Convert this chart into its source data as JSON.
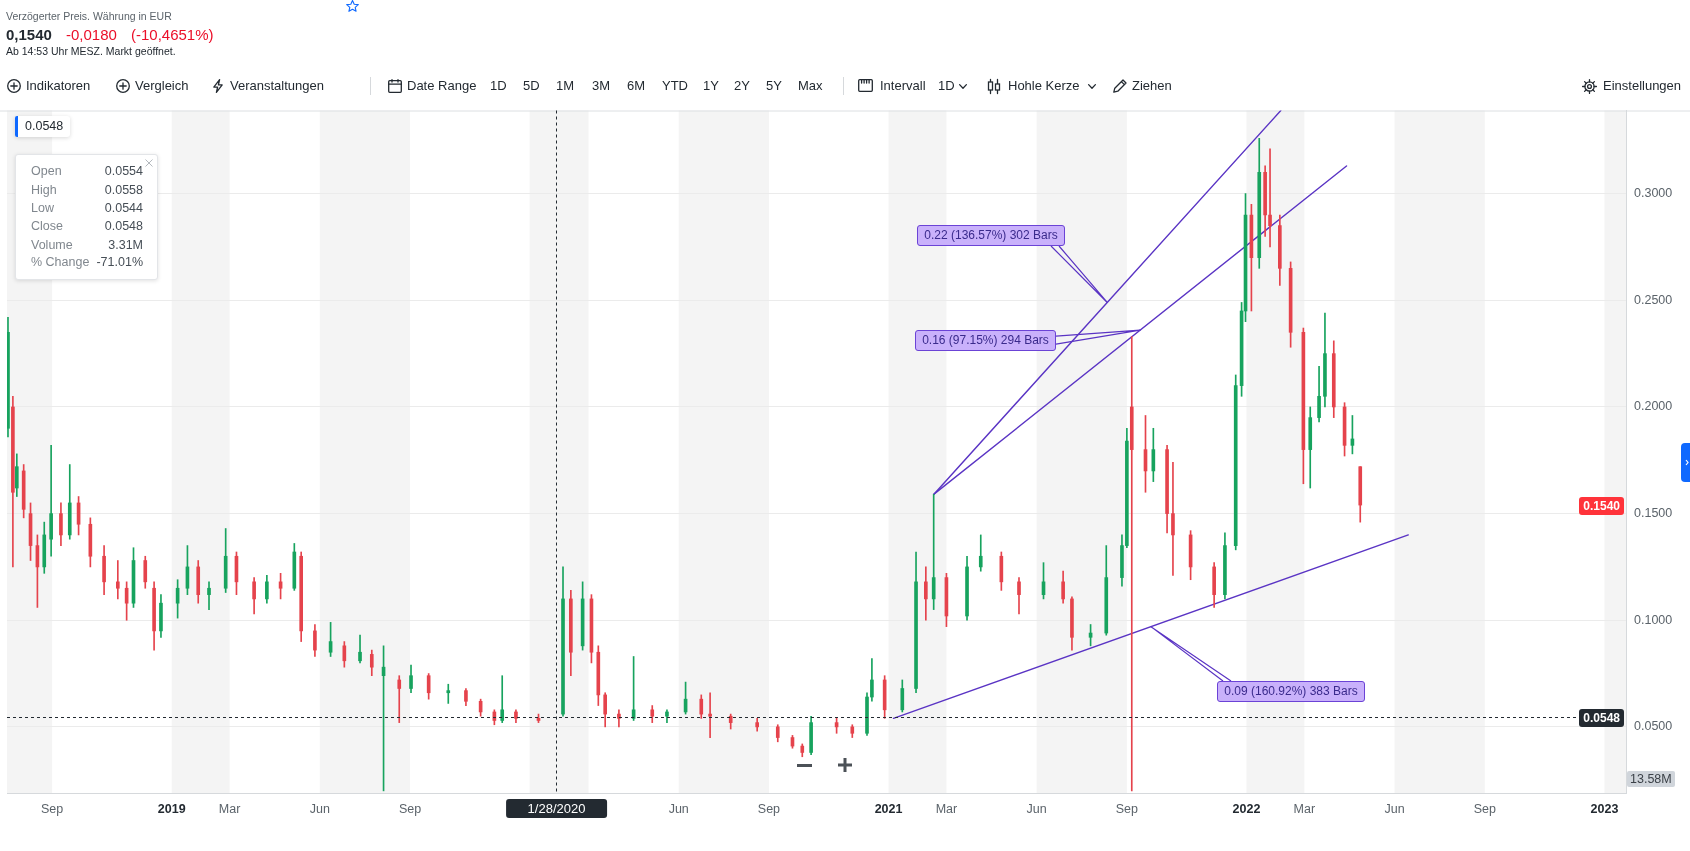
{
  "chart_data": {
    "type": "candlestick",
    "subtitle": "Verzögerter Preis. Währung in EUR",
    "x": [
      "2018-07-18",
      "2018-07-23",
      "2018-07-27",
      "2018-08-03",
      "2018-08-10",
      "2018-08-17",
      "2018-08-24",
      "2018-08-31",
      "2018-09-10",
      "2018-09-19",
      "2018-09-28",
      "2018-10-10",
      "2018-10-24",
      "2018-11-07",
      "2018-11-16",
      "2018-11-23",
      "2018-12-05",
      "2018-12-14",
      "2018-12-21",
      "2019-01-07",
      "2019-01-17",
      "2019-01-28",
      "2019-02-08",
      "2019-02-25",
      "2019-03-08",
      "2019-03-26",
      "2019-04-08",
      "2019-04-22",
      "2019-05-06",
      "2019-05-13",
      "2019-05-27",
      "2019-06-12",
      "2019-06-26",
      "2019-07-12",
      "2019-07-24",
      "2019-08-05",
      "2019-08-21",
      "2019-09-02",
      "2019-09-20",
      "2019-10-10",
      "2019-10-28",
      "2019-11-12",
      "2019-11-26",
      "2019-12-04",
      "2019-12-18",
      "2020-01-10",
      "2020-02-04",
      "2020-02-12",
      "2020-02-24",
      "2020-03-04",
      "2020-03-11",
      "2020-03-18",
      "2020-04-01",
      "2020-04-16",
      "2020-05-05",
      "2020-05-20",
      "2020-06-08",
      "2020-06-24",
      "2020-07-03",
      "2020-07-24",
      "2020-08-20",
      "2020-09-10",
      "2020-09-25",
      "2020-10-05",
      "2020-10-14",
      "2020-11-09",
      "2020-11-25",
      "2020-12-10",
      "2020-12-15",
      "2020-12-28",
      "2021-01-15",
      "2021-01-29",
      "2021-02-08",
      "2021-02-16",
      "2021-03-01",
      "2021-03-22",
      "2021-04-05",
      "2021-04-26",
      "2021-05-14",
      "2021-06-08",
      "2021-06-28",
      "2021-07-07",
      "2021-07-26",
      "2021-08-11",
      "2021-08-27",
      "2021-09-01",
      "2021-09-06",
      "2021-09-20",
      "2021-09-28",
      "2021-10-12",
      "2021-10-18",
      "2021-11-05",
      "2021-11-29",
      "2021-12-10",
      "2021-12-21",
      "2021-12-27",
      "2021-12-31",
      "2022-01-06",
      "2022-01-14",
      "2022-01-20",
      "2022-01-25",
      "2022-02-04",
      "2022-02-15",
      "2022-02-28",
      "2022-03-07",
      "2022-03-16",
      "2022-03-22",
      "2022-03-31",
      "2022-04-11",
      "2022-04-19",
      "2022-04-27"
    ],
    "ohlc": [
      [
        0.19,
        0.242,
        0.186,
        0.235
      ],
      [
        0.2,
        0.205,
        0.125,
        0.16
      ],
      [
        0.162,
        0.178,
        0.158,
        0.172
      ],
      [
        0.17,
        0.173,
        0.148,
        0.152
      ],
      [
        0.15,
        0.155,
        0.128,
        0.135
      ],
      [
        0.135,
        0.14,
        0.106,
        0.125
      ],
      [
        0.125,
        0.146,
        0.122,
        0.14
      ],
      [
        0.138,
        0.182,
        0.13,
        0.15
      ],
      [
        0.15,
        0.155,
        0.135,
        0.14
      ],
      [
        0.14,
        0.173,
        0.138,
        0.155
      ],
      [
        0.155,
        0.158,
        0.14,
        0.145
      ],
      [
        0.145,
        0.148,
        0.125,
        0.13
      ],
      [
        0.13,
        0.135,
        0.112,
        0.118
      ],
      [
        0.118,
        0.128,
        0.11,
        0.115
      ],
      [
        0.115,
        0.118,
        0.1,
        0.108
      ],
      [
        0.108,
        0.134,
        0.106,
        0.128
      ],
      [
        0.128,
        0.13,
        0.115,
        0.118
      ],
      [
        0.115,
        0.118,
        0.086,
        0.095
      ],
      [
        0.095,
        0.112,
        0.092,
        0.108
      ],
      [
        0.108,
        0.119,
        0.101,
        0.115
      ],
      [
        0.115,
        0.135,
        0.112,
        0.125
      ],
      [
        0.125,
        0.128,
        0.108,
        0.112
      ],
      [
        0.112,
        0.118,
        0.105,
        0.115
      ],
      [
        0.115,
        0.143,
        0.113,
        0.13
      ],
      [
        0.13,
        0.132,
        0.112,
        0.118
      ],
      [
        0.118,
        0.12,
        0.103,
        0.11
      ],
      [
        0.11,
        0.121,
        0.108,
        0.118
      ],
      [
        0.118,
        0.122,
        0.11,
        0.115
      ],
      [
        0.115,
        0.136,
        0.114,
        0.132
      ],
      [
        0.13,
        0.132,
        0.09,
        0.095
      ],
      [
        0.095,
        0.098,
        0.083,
        0.086
      ],
      [
        0.085,
        0.099,
        0.083,
        0.09
      ],
      [
        0.088,
        0.09,
        0.078,
        0.081
      ],
      [
        0.081,
        0.093,
        0.08,
        0.085
      ],
      [
        0.084,
        0.086,
        0.074,
        0.078
      ],
      [
        0.074,
        0.088,
        0.02,
        0.078
      ],
      [
        0.072,
        0.074,
        0.052,
        0.068
      ],
      [
        0.068,
        0.079,
        0.066,
        0.074
      ],
      [
        0.074,
        0.075,
        0.063,
        0.066
      ],
      [
        0.066,
        0.07,
        0.061,
        0.067
      ],
      [
        0.067,
        0.068,
        0.06,
        0.062
      ],
      [
        0.062,
        0.063,
        0.055,
        0.057
      ],
      [
        0.057,
        0.058,
        0.051,
        0.053
      ],
      [
        0.053,
        0.074,
        0.052,
        0.058
      ],
      [
        0.057,
        0.058,
        0.052,
        0.054
      ],
      [
        0.054,
        0.056,
        0.052,
        0.053
      ],
      [
        0.056,
        0.125,
        0.055,
        0.11
      ],
      [
        0.11,
        0.114,
        0.074,
        0.085
      ],
      [
        0.088,
        0.118,
        0.086,
        0.11
      ],
      [
        0.11,
        0.112,
        0.08,
        0.085
      ],
      [
        0.085,
        0.088,
        0.06,
        0.065
      ],
      [
        0.065,
        0.066,
        0.05,
        0.056
      ],
      [
        0.056,
        0.058,
        0.05,
        0.054
      ],
      [
        0.054,
        0.083,
        0.053,
        0.058
      ],
      [
        0.058,
        0.06,
        0.052,
        0.055
      ],
      [
        0.055,
        0.058,
        0.052,
        0.057
      ],
      [
        0.057,
        0.071,
        0.056,
        0.063
      ],
      [
        0.063,
        0.065,
        0.054,
        0.056
      ],
      [
        0.056,
        0.066,
        0.045,
        0.055
      ],
      [
        0.055,
        0.056,
        0.049,
        0.052
      ],
      [
        0.052,
        0.054,
        0.048,
        0.05
      ],
      [
        0.05,
        0.051,
        0.043,
        0.045
      ],
      [
        0.045,
        0.046,
        0.04,
        0.041
      ],
      [
        0.041,
        0.042,
        0.036,
        0.038
      ],
      [
        0.038,
        0.055,
        0.037,
        0.052
      ],
      [
        0.052,
        0.054,
        0.047,
        0.05
      ],
      [
        0.05,
        0.051,
        0.045,
        0.047
      ],
      [
        0.047,
        0.066,
        0.046,
        0.064
      ],
      [
        0.064,
        0.082,
        0.062,
        0.072
      ],
      [
        0.072,
        0.074,
        0.054,
        0.058
      ],
      [
        0.058,
        0.072,
        0.057,
        0.068
      ],
      [
        0.068,
        0.132,
        0.066,
        0.118
      ],
      [
        0.118,
        0.125,
        0.1,
        0.11
      ],
      [
        0.11,
        0.159,
        0.105,
        0.12
      ],
      [
        0.12,
        0.122,
        0.097,
        0.102
      ],
      [
        0.102,
        0.13,
        0.1,
        0.125
      ],
      [
        0.125,
        0.14,
        0.123,
        0.13
      ],
      [
        0.13,
        0.132,
        0.114,
        0.118
      ],
      [
        0.118,
        0.12,
        0.103,
        0.112
      ],
      [
        0.112,
        0.127,
        0.11,
        0.118
      ],
      [
        0.118,
        0.123,
        0.108,
        0.11
      ],
      [
        0.11,
        0.111,
        0.086,
        0.092
      ],
      [
        0.092,
        0.098,
        0.088,
        0.094
      ],
      [
        0.094,
        0.135,
        0.093,
        0.12
      ],
      [
        0.12,
        0.14,
        0.116,
        0.135
      ],
      [
        0.135,
        0.19,
        0.134,
        0.184
      ],
      [
        0.2,
        0.233,
        0.02,
        0.18
      ],
      [
        0.18,
        0.196,
        0.16,
        0.17
      ],
      [
        0.17,
        0.19,
        0.165,
        0.18
      ],
      [
        0.18,
        0.182,
        0.141,
        0.15
      ],
      [
        0.15,
        0.174,
        0.121,
        0.14
      ],
      [
        0.14,
        0.142,
        0.119,
        0.125
      ],
      [
        0.125,
        0.127,
        0.106,
        0.112
      ],
      [
        0.112,
        0.141,
        0.11,
        0.135
      ],
      [
        0.135,
        0.215,
        0.133,
        0.21
      ],
      [
        0.21,
        0.249,
        0.205,
        0.245
      ],
      [
        0.245,
        0.3,
        0.24,
        0.29
      ],
      [
        0.29,
        0.295,
        0.245,
        0.27
      ],
      [
        0.27,
        0.326,
        0.265,
        0.31
      ],
      [
        0.31,
        0.313,
        0.28,
        0.29
      ],
      [
        0.29,
        0.321,
        0.275,
        0.285
      ],
      [
        0.285,
        0.29,
        0.257,
        0.265
      ],
      [
        0.265,
        0.268,
        0.228,
        0.235
      ],
      [
        0.235,
        0.237,
        0.164,
        0.18
      ],
      [
        0.18,
        0.2,
        0.162,
        0.195
      ],
      [
        0.195,
        0.219,
        0.193,
        0.205
      ],
      [
        0.205,
        0.244,
        0.2,
        0.225
      ],
      [
        0.225,
        0.231,
        0.195,
        0.2
      ],
      [
        0.2,
        0.202,
        0.177,
        0.182
      ],
      [
        0.182,
        0.196,
        0.178,
        0.185
      ],
      [
        0.172,
        0.172,
        0.146,
        0.154
      ]
    ],
    "colors": [
      "#17a35e",
      "#e5434c",
      "#17a35e",
      "#e5434c",
      "#e5434c",
      "#e5434c",
      "#17a35e",
      "#17a35e",
      "#e5434c",
      "#17a35e",
      "#e5434c",
      "#e5434c",
      "#e5434c",
      "#e5434c",
      "#e5434c",
      "#17a35e",
      "#e5434c",
      "#e5434c",
      "#17a35e",
      "#17a35e",
      "#17a35e",
      "#e5434c",
      "#17a35e",
      "#17a35e",
      "#e5434c",
      "#e5434c",
      "#17a35e",
      "#e5434c",
      "#17a35e",
      "#e5434c",
      "#e5434c",
      "#17a35e",
      "#e5434c",
      "#17a35e",
      "#e5434c",
      "#17a35e",
      "#e5434c",
      "#17a35e",
      "#e5434c",
      "#17a35e",
      "#e5434c",
      "#e5434c",
      "#e5434c",
      "#17a35e",
      "#e5434c",
      "#e5434c",
      "#17a35e",
      "#e5434c",
      "#17a35e",
      "#e5434c",
      "#e5434c",
      "#e5434c",
      "#e5434c",
      "#17a35e",
      "#e5434c",
      "#17a35e",
      "#17a35e",
      "#e5434c",
      "#e5434c",
      "#e5434c",
      "#e5434c",
      "#e5434c",
      "#e5434c",
      "#e5434c",
      "#17a35e",
      "#e5434c",
      "#e5434c",
      "#17a35e",
      "#17a35e",
      "#e5434c",
      "#17a35e",
      "#17a35e",
      "#e5434c",
      "#17a35e",
      "#e5434c",
      "#17a35e",
      "#17a35e",
      "#e5434c",
      "#e5434c",
      "#17a35e",
      "#e5434c",
      "#e5434c",
      "#17a35e",
      "#17a35e",
      "#17a35e",
      "#17a35e",
      "#e5434c",
      "#e5434c",
      "#17a35e",
      "#e5434c",
      "#e5434c",
      "#e5434c",
      "#e5434c",
      "#17a35e",
      "#17a35e",
      "#17a35e",
      "#17a35e",
      "#e5434c",
      "#17a35e",
      "#e5434c",
      "#e5434c",
      "#e5434c",
      "#e5434c",
      "#e5434c",
      "#17a35e",
      "#17a35e",
      "#17a35e",
      "#e5434c",
      "#e5434c",
      "#17a35e",
      "#e5434c"
    ],
    "series": [
      {
        "type": "line",
        "x": [
          "2021-02-16",
          "2022-02-05"
        ],
        "values": [
          0.159,
          0.339
        ],
        "color": "#5a34c4"
      },
      {
        "type": "line",
        "x": [
          "2021-02-16",
          "2022-04-13"
        ],
        "values": [
          0.159,
          0.313
        ],
        "color": "#5a34c4"
      },
      {
        "type": "line",
        "x": [
          "2021-01-06",
          "2022-06-15"
        ],
        "values": [
          0.054,
          0.14
        ],
        "color": "#5a34c4"
      }
    ],
    "xlim": [
      "2018-07-17",
      "2023-01-23"
    ],
    "xticks": [
      {
        "value": "2018-09-01",
        "label": "Sep"
      },
      {
        "value": "2019-01-01",
        "label": "2019"
      },
      {
        "value": "2019-03-01",
        "label": "Mar"
      },
      {
        "value": "2019-06-01",
        "label": "Jun"
      },
      {
        "value": "2019-09-01",
        "label": "Sep"
      },
      {
        "value": "2020-06-01",
        "label": "Jun"
      },
      {
        "value": "2020-09-01",
        "label": "Sep"
      },
      {
        "value": "2021-01-01",
        "label": "2021"
      },
      {
        "value": "2021-03-01",
        "label": "Mar"
      },
      {
        "value": "2021-06-01",
        "label": "Jun"
      },
      {
        "value": "2021-09-01",
        "label": "Sep"
      },
      {
        "value": "2022-01-01",
        "label": "2022"
      },
      {
        "value": "2022-03-01",
        "label": "Mar"
      },
      {
        "value": "2022-06-01",
        "label": "Jun"
      },
      {
        "value": "2022-09-01",
        "label": "Sep"
      },
      {
        "value": "2023-01-01",
        "label": "2023"
      }
    ],
    "ylim": [
      0.019,
      0.339
    ],
    "yticks": [
      {
        "value": 0.05,
        "label": "0.0500"
      },
      {
        "value": 0.1,
        "label": "0.1000"
      },
      {
        "value": 0.15,
        "label": "0.1500"
      },
      {
        "value": 0.2,
        "label": "0.2000"
      },
      {
        "value": 0.25,
        "label": "0.2500"
      },
      {
        "value": 0.3,
        "label": "0.3000"
      }
    ],
    "grid": "y",
    "bands": [
      {
        "axis": "x",
        "from": "2018-07-17",
        "to": "2018-09-01",
        "color": "#f4f4f4"
      },
      {
        "axis": "x",
        "from": "2019-01-01",
        "to": "2019-03-01",
        "color": "#f4f4f4"
      },
      {
        "axis": "x",
        "from": "2019-06-01",
        "to": "2019-09-01",
        "color": "#f4f4f4"
      },
      {
        "axis": "x",
        "from": "2020-01-01",
        "to": "2020-03-01",
        "color": "#f4f4f4"
      },
      {
        "axis": "x",
        "from": "2020-06-01",
        "to": "2020-09-01",
        "color": "#f4f4f4"
      },
      {
        "axis": "x",
        "from": "2021-01-01",
        "to": "2021-03-01",
        "color": "#f4f4f4"
      },
      {
        "axis": "x",
        "from": "2021-06-01",
        "to": "2021-09-01",
        "color": "#f4f4f4"
      },
      {
        "axis": "x",
        "from": "2022-01-01",
        "to": "2022-03-01",
        "color": "#f4f4f4"
      },
      {
        "axis": "x",
        "from": "2022-06-01",
        "to": "2022-09-01",
        "color": "#f4f4f4"
      },
      {
        "axis": "x",
        "from": "2023-01-01",
        "to": "2023-01-23",
        "color": "#f4f4f4"
      }
    ],
    "ref_lines": [
      {
        "axis": "y",
        "value": 0.0548,
        "label": "0.0548",
        "color": "#232a31",
        "line_style": "dashed"
      },
      {
        "axis": "x",
        "value": "2020-01-28",
        "label": "1/28/2020",
        "color": "#232a31",
        "line_style": "dashed"
      }
    ],
    "annotations": [
      "0,1540",
      "-0,0180",
      "(-10,4651%)",
      "Ab 14:53 Uhr MESZ. Markt geöffnet.",
      "Indikatoren",
      "Vergleich",
      "Veranstaltungen",
      "Date Range",
      "1D",
      "5D",
      "1M",
      "3M",
      "6M",
      "YTD",
      "1Y",
      "2Y",
      "5Y",
      "Max",
      "Intervall",
      "1D",
      "Hohle Kerze",
      "Ziehen",
      "Einstellungen",
      "0.0548",
      "Open",
      "0.0554",
      "High",
      "0.0558",
      "Low",
      "0.0544",
      "Close",
      "0.0548",
      "Volume",
      "3.31M",
      "% Change",
      "-71.01%",
      "13.58M",
      {
        "text": "0.1540",
        "y": 0.154
      },
      "0.22 (136.57%) 302 Bars",
      "0.16 (97.15%) 294 Bars",
      "0.09 (160.92%) 383 Bars"
    ]
  }
}
